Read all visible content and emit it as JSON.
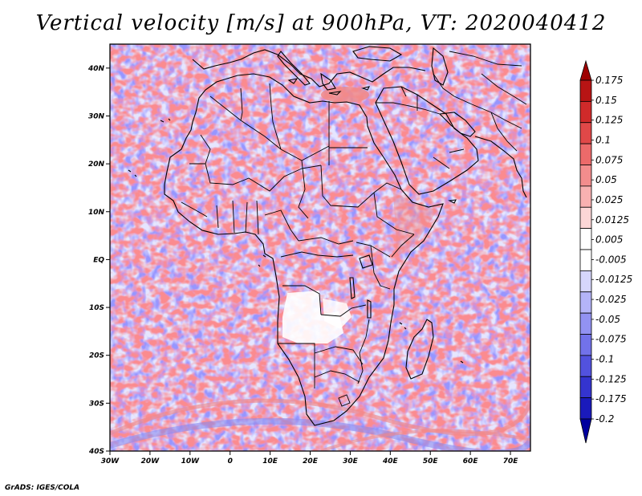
{
  "title": "Vertical velocity [m/s] at 900hPa, VT: 2020040412",
  "footer": "GrADS: IGES/COLA",
  "axes": {
    "lat_labels": [
      "40N",
      "30N",
      "20N",
      "10N",
      "EQ",
      "10S",
      "20S",
      "30S",
      "40S"
    ],
    "lon_labels": [
      "30W",
      "20W",
      "10W",
      "0",
      "10E",
      "20E",
      "30E",
      "40E",
      "50E",
      "60E",
      "70E"
    ]
  },
  "colorbar": {
    "labels": [
      "0.175",
      "0.15",
      "0.125",
      "0.1",
      "0.075",
      "0.05",
      "0.025",
      "0.0125",
      "0.005",
      "-0.005",
      "-0.0125",
      "-0.025",
      "-0.05",
      "-0.075",
      "-0.1",
      "-0.125",
      "-0.175",
      "-0.2"
    ],
    "colors": [
      "#9e0000",
      "#b81414",
      "#d02a2a",
      "#e04848",
      "#ec6a6a",
      "#f38d8d",
      "#f8b1b1",
      "#fcd6d6",
      "#ffffff",
      "#ffffff",
      "#d6d6fc",
      "#b4b4f8",
      "#9292f2",
      "#7272ea",
      "#5252de",
      "#3434cf",
      "#1a1abb",
      "#00009e"
    ]
  },
  "field_colors": {
    "background": "#e6e6ff",
    "land": "#ececfa",
    "ascent": "#f08a8a",
    "descent": "#8a8aee",
    "calm": "#ffffff",
    "border": "#000000"
  }
}
